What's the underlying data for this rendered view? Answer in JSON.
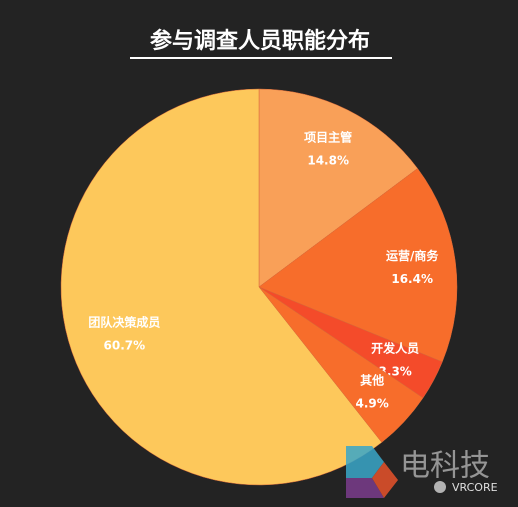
{
  "chart_data": {
    "type": "pie",
    "title": "参与调查人员职能分布",
    "categories": [
      "项目主管",
      "运营/商务",
      "开发人员",
      "其他",
      "团队决策成员"
    ],
    "values": [
      14.8,
      16.4,
      3.3,
      4.9,
      60.7
    ],
    "value_labels": [
      "14.8%",
      "16.4%",
      "3.3%",
      "4.9%",
      "60.7%"
    ],
    "colors": [
      "#f9a058",
      "#f76d2b",
      "#f44b2a",
      "#f76d2b",
      "#fdc85b"
    ]
  },
  "watermark": {
    "brand": "电科技",
    "account": "VRCORE"
  }
}
